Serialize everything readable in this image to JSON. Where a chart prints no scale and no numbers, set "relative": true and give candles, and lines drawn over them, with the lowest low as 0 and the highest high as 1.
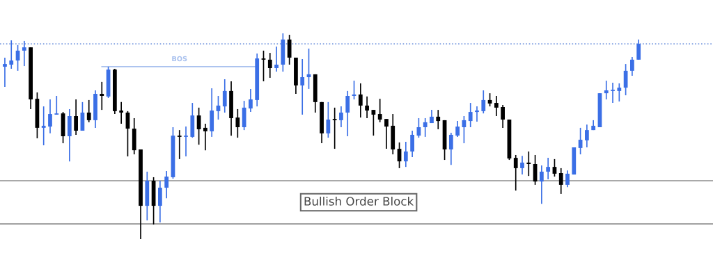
{
  "chart_data": {
    "type": "candlestick",
    "relative": true,
    "categories": [
      null,
      null,
      null,
      null,
      null,
      null,
      null,
      null,
      null,
      null,
      null,
      null,
      null,
      null,
      null,
      null,
      null,
      null,
      null,
      null,
      null,
      null,
      null,
      null,
      null,
      null,
      null,
      null,
      null,
      null,
      null,
      null,
      null,
      null,
      null,
      null,
      null,
      null,
      null,
      null,
      null,
      null,
      null,
      null,
      null,
      null,
      null,
      null,
      null,
      null,
      null,
      null,
      null,
      null,
      null,
      null,
      null,
      null,
      null,
      null,
      null,
      null,
      null,
      null,
      null,
      null,
      null,
      null,
      null,
      null,
      null,
      null,
      null,
      null,
      null,
      null,
      null,
      null,
      null,
      null,
      null,
      null,
      null,
      null,
      null,
      null,
      null,
      null,
      null,
      null,
      null,
      null,
      null,
      null,
      null,
      null,
      null,
      null,
      null
    ],
    "ohlc": [
      [
        0.838,
        0.882,
        0.74,
        0.851
      ],
      [
        0.848,
        0.966,
        0.828,
        0.868
      ],
      [
        0.868,
        0.943,
        0.818,
        0.916
      ],
      [
        0.916,
        0.963,
        0.841,
        0.932
      ],
      [
        0.932,
        0.932,
        0.632,
        0.679
      ],
      [
        0.682,
        0.713,
        0.49,
        0.541
      ],
      [
        0.541,
        0.645,
        0.456,
        0.551
      ],
      [
        0.547,
        0.679,
        0.514,
        0.608
      ],
      [
        0.605,
        0.696,
        0.605,
        0.611
      ],
      [
        0.611,
        0.618,
        0.466,
        0.5
      ],
      [
        0.5,
        0.632,
        0.378,
        0.598
      ],
      [
        0.598,
        0.679,
        0.507,
        0.527
      ],
      [
        0.527,
        0.666,
        0.527,
        0.615
      ],
      [
        0.615,
        0.676,
        0.568,
        0.578
      ],
      [
        0.578,
        0.723,
        0.541,
        0.706
      ],
      [
        0.706,
        0.764,
        0.628,
        0.696
      ],
      [
        0.693,
        0.838,
        0.686,
        0.824
      ],
      [
        0.824,
        0.828,
        0.608,
        0.622
      ],
      [
        0.625,
        0.666,
        0.561,
        0.615
      ],
      [
        0.615,
        0.622,
        0.402,
        0.537
      ],
      [
        0.537,
        0.588,
        0.412,
        0.432
      ],
      [
        0.436,
        0.436,
        0.0,
        0.162
      ],
      [
        0.162,
        0.328,
        0.091,
        0.284
      ],
      [
        0.284,
        0.301,
        0.071,
        0.162
      ],
      [
        0.162,
        0.284,
        0.081,
        0.25
      ],
      [
        0.25,
        0.331,
        0.199,
        0.304
      ],
      [
        0.301,
        0.544,
        0.294,
        0.503
      ],
      [
        0.503,
        0.53,
        0.389,
        0.497
      ],
      [
        0.497,
        0.547,
        0.402,
        0.503
      ],
      [
        0.497,
        0.662,
        0.493,
        0.601
      ],
      [
        0.601,
        0.639,
        0.459,
        0.534
      ],
      [
        0.541,
        0.561,
        0.432,
        0.524
      ],
      [
        0.524,
        0.733,
        0.497,
        0.625
      ],
      [
        0.622,
        0.696,
        0.581,
        0.649
      ],
      [
        0.645,
        0.777,
        0.615,
        0.72
      ],
      [
        0.72,
        0.767,
        0.503,
        0.588
      ],
      [
        0.591,
        0.632,
        0.493,
        0.544
      ],
      [
        0.544,
        0.672,
        0.53,
        0.639
      ],
      [
        0.635,
        0.73,
        0.618,
        0.679
      ],
      [
        0.676,
        0.902,
        0.645,
        0.878
      ],
      [
        0.878,
        0.916,
        0.767,
        0.872
      ],
      [
        0.872,
        0.905,
        0.784,
        0.831
      ],
      [
        0.831,
        0.936,
        0.814,
        0.848
      ],
      [
        0.848,
        1.0,
        0.814,
        0.97
      ],
      [
        0.97,
        0.993,
        0.848,
        0.882
      ],
      [
        0.882,
        0.882,
        0.706,
        0.747
      ],
      [
        0.747,
        0.875,
        0.605,
        0.787
      ],
      [
        0.787,
        0.926,
        0.73,
        0.801
      ],
      [
        0.801,
        0.801,
        0.615,
        0.666
      ],
      [
        0.666,
        0.666,
        0.466,
        0.514
      ],
      [
        0.514,
        0.666,
        0.493,
        0.581
      ],
      [
        0.581,
        0.639,
        0.439,
        0.578
      ],
      [
        0.578,
        0.645,
        0.544,
        0.615
      ],
      [
        0.615,
        0.72,
        0.5,
        0.696
      ],
      [
        0.696,
        0.77,
        0.679,
        0.703
      ],
      [
        0.703,
        0.757,
        0.591,
        0.649
      ],
      [
        0.649,
        0.693,
        0.588,
        0.625
      ],
      [
        0.628,
        0.628,
        0.503,
        0.605
      ],
      [
        0.608,
        0.682,
        0.568,
        0.581
      ],
      [
        0.584,
        0.584,
        0.439,
        0.547
      ],
      [
        0.551,
        0.608,
        0.412,
        0.436
      ],
      [
        0.439,
        0.47,
        0.345,
        0.378
      ],
      [
        0.378,
        0.473,
        0.351,
        0.426
      ],
      [
        0.426,
        0.527,
        0.399,
        0.507
      ],
      [
        0.503,
        0.588,
        0.493,
        0.544
      ],
      [
        0.544,
        0.588,
        0.497,
        0.568
      ],
      [
        0.564,
        0.628,
        0.564,
        0.595
      ],
      [
        0.595,
        0.628,
        0.534,
        0.574
      ],
      [
        0.578,
        0.578,
        0.385,
        0.436
      ],
      [
        0.436,
        0.517,
        0.361,
        0.507
      ],
      [
        0.503,
        0.574,
        0.497,
        0.547
      ],
      [
        0.544,
        0.598,
        0.466,
        0.578
      ],
      [
        0.574,
        0.662,
        0.544,
        0.618
      ],
      [
        0.618,
        0.645,
        0.571,
        0.625
      ],
      [
        0.622,
        0.723,
        0.611,
        0.676
      ],
      [
        0.676,
        0.709,
        0.645,
        0.659
      ],
      [
        0.662,
        0.696,
        0.598,
        0.639
      ],
      [
        0.642,
        0.652,
        0.541,
        0.581
      ],
      [
        0.581,
        0.581,
        0.385,
        0.392
      ],
      [
        0.395,
        0.409,
        0.236,
        0.345
      ],
      [
        0.345,
        0.405,
        0.314,
        0.372
      ],
      [
        0.372,
        0.426,
        0.307,
        0.365
      ],
      [
        0.365,
        0.409,
        0.264,
        0.28
      ],
      [
        0.28,
        0.358,
        0.172,
        0.328
      ],
      [
        0.328,
        0.395,
        0.291,
        0.351
      ],
      [
        0.351,
        0.389,
        0.304,
        0.318
      ],
      [
        0.321,
        0.345,
        0.22,
        0.264
      ],
      [
        0.264,
        0.334,
        0.253,
        0.318
      ],
      [
        0.314,
        0.446,
        0.314,
        0.446
      ],
      [
        0.443,
        0.541,
        0.412,
        0.483
      ],
      [
        0.48,
        0.557,
        0.446,
        0.53
      ],
      [
        0.53,
        0.578,
        0.53,
        0.551
      ],
      [
        0.544,
        0.709,
        0.544,
        0.709
      ],
      [
        0.709,
        0.77,
        0.679,
        0.723
      ],
      [
        0.72,
        0.76,
        0.662,
        0.723
      ],
      [
        0.72,
        0.757,
        0.669,
        0.736
      ],
      [
        0.736,
        0.851,
        0.699,
        0.818
      ],
      [
        0.818,
        0.885,
        0.794,
        0.872
      ],
      [
        0.872,
        0.97,
        0.872,
        0.949
      ]
    ],
    "colors": [
      "#3b6fe6",
      "#3b6fe6",
      "#3b6fe6",
      "#3b6fe6",
      "#000000",
      "#000000",
      "#3b6fe6",
      "#3b6fe6",
      "#3b6fe6",
      "#000000",
      "#3b6fe6",
      "#000000",
      "#3b6fe6",
      "#000000",
      "#3b6fe6",
      "#000000",
      "#3b6fe6",
      "#000000",
      "#000000",
      "#000000",
      "#000000",
      "#000000",
      "#3b6fe6",
      "#000000",
      "#3b6fe6",
      "#3b6fe6",
      "#3b6fe6",
      "#000000",
      "#3b6fe6",
      "#3b6fe6",
      "#000000",
      "#000000",
      "#3b6fe6",
      "#3b6fe6",
      "#3b6fe6",
      "#000000",
      "#000000",
      "#3b6fe6",
      "#3b6fe6",
      "#3b6fe6",
      "#000000",
      "#000000",
      "#3b6fe6",
      "#3b6fe6",
      "#000000",
      "#000000",
      "#3b6fe6",
      "#3b6fe6",
      "#000000",
      "#000000",
      "#3b6fe6",
      "#000000",
      "#3b6fe6",
      "#3b6fe6",
      "#3b6fe6",
      "#000000",
      "#000000",
      "#000000",
      "#000000",
      "#000000",
      "#000000",
      "#000000",
      "#3b6fe6",
      "#3b6fe6",
      "#3b6fe6",
      "#3b6fe6",
      "#3b6fe6",
      "#000000",
      "#000000",
      "#3b6fe6",
      "#3b6fe6",
      "#3b6fe6",
      "#3b6fe6",
      "#3b6fe6",
      "#3b6fe6",
      "#000000",
      "#000000",
      "#000000",
      "#000000",
      "#000000",
      "#3b6fe6",
      "#000000",
      "#000000",
      "#3b6fe6",
      "#3b6fe6",
      "#000000",
      "#000000",
      "#3b6fe6",
      "#3b6fe6",
      "#3b6fe6",
      "#3b6fe6",
      "#3b6fe6",
      "#3b6fe6",
      "#3b6fe6",
      "#3b6fe6",
      "#3b6fe6",
      "#3b6fe6",
      "#3b6fe6",
      "#3b6fe6"
    ],
    "series": [
      {
        "type": "line",
        "name": "BOS",
        "color": "#a9c1ee",
        "values": [
          null,
          null,
          null,
          null,
          null,
          null,
          null,
          null,
          null,
          null,
          null,
          null,
          null,
          null,
          null,
          0.838,
          0.838,
          0.838,
          0.838,
          0.838,
          0.838,
          0.838,
          0.838,
          0.838,
          0.838,
          0.838,
          0.838,
          0.838,
          0.838,
          0.838,
          0.838,
          0.838,
          0.838,
          0.838,
          0.838,
          0.838,
          0.838,
          0.838,
          0.838,
          0.838,
          null,
          null,
          null,
          null,
          null,
          null,
          null,
          null,
          null,
          null,
          null,
          null,
          null,
          null,
          null,
          null,
          null,
          null,
          null,
          null,
          null,
          null,
          null,
          null,
          null,
          null,
          null,
          null,
          null,
          null,
          null,
          null,
          null,
          null,
          null,
          null,
          null,
          null,
          null,
          null,
          null,
          null,
          null,
          null,
          null,
          null,
          null,
          null,
          null,
          null,
          null,
          null,
          null,
          null,
          null,
          null,
          null,
          null,
          null
        ]
      }
    ],
    "ref_lines": [
      {
        "axis": "y",
        "value": 0.949,
        "color": "#7a9be0",
        "line_style": "dotted"
      },
      {
        "axis": "y",
        "value": 0.284,
        "color": "#8c8c8c",
        "line_style": "solid"
      },
      {
        "axis": "y",
        "value": 0.074,
        "color": "#8c8c8c",
        "line_style": "solid"
      }
    ],
    "annotations": [
      "Bullish Order Block"
    ]
  }
}
